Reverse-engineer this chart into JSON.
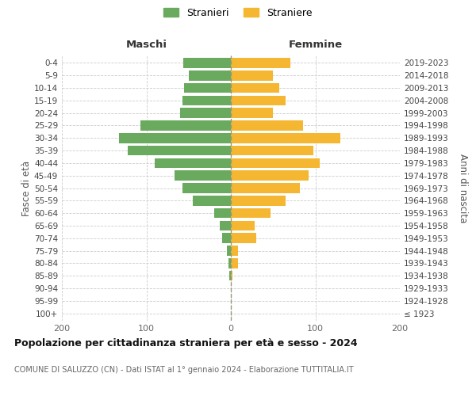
{
  "age_groups": [
    "100+",
    "95-99",
    "90-94",
    "85-89",
    "80-84",
    "75-79",
    "70-74",
    "65-69",
    "60-64",
    "55-59",
    "50-54",
    "45-49",
    "40-44",
    "35-39",
    "30-34",
    "25-29",
    "20-24",
    "15-19",
    "10-14",
    "5-9",
    "0-4"
  ],
  "birth_years": [
    "≤ 1923",
    "1924-1928",
    "1929-1933",
    "1934-1938",
    "1939-1943",
    "1944-1948",
    "1949-1953",
    "1954-1958",
    "1959-1963",
    "1964-1968",
    "1969-1973",
    "1974-1978",
    "1979-1983",
    "1984-1988",
    "1989-1993",
    "1994-1998",
    "1999-2003",
    "2004-2008",
    "2009-2013",
    "2014-2018",
    "2019-2023"
  ],
  "maschi": [
    0,
    0,
    0,
    2,
    3,
    5,
    10,
    13,
    20,
    45,
    57,
    67,
    90,
    122,
    132,
    107,
    60,
    57,
    55,
    50,
    56
  ],
  "femmine": [
    0,
    0,
    0,
    2,
    8,
    8,
    30,
    28,
    47,
    65,
    82,
    92,
    105,
    98,
    130,
    85,
    50,
    65,
    57,
    50,
    70
  ],
  "color_maschi": "#6aaa5e",
  "color_femmine": "#f5b731",
  "title": "Popolazione per cittadinanza straniera per età e sesso - 2024",
  "subtitle": "COMUNE DI SALUZZO (CN) - Dati ISTAT al 1° gennaio 2024 - Elaborazione TUTTITALIA.IT",
  "label_maschi": "Maschi",
  "label_femmine": "Femmine",
  "ylabel_left": "Fasce di età",
  "ylabel_right": "Anni di nascita",
  "legend_maschi": "Stranieri",
  "legend_femmine": "Straniere",
  "xlim": 200,
  "bg_color": "#ffffff",
  "grid_color": "#cccccc"
}
